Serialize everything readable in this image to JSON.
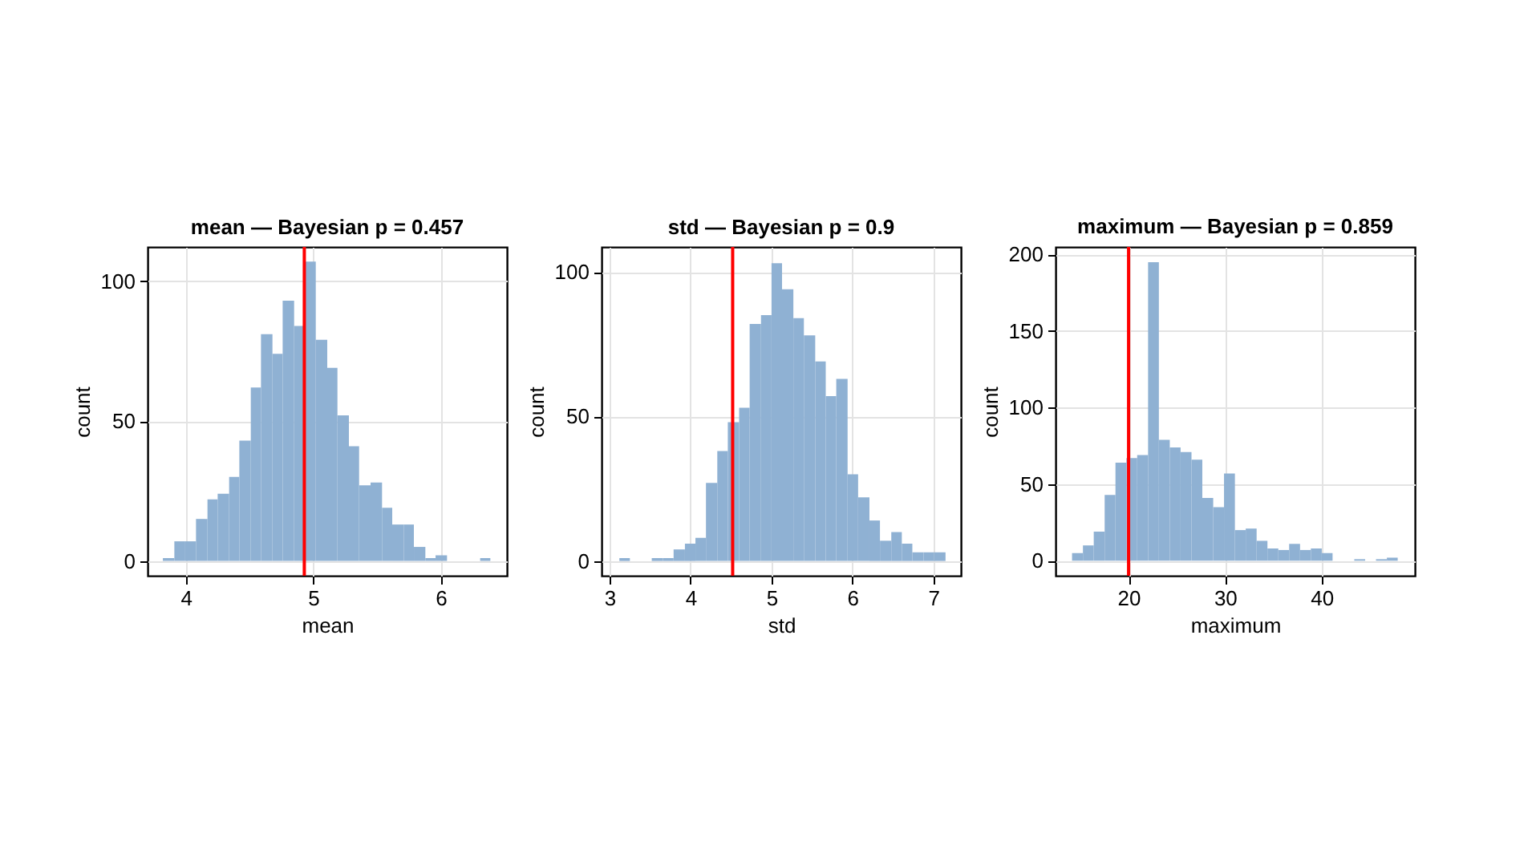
{
  "chart_data": [
    {
      "type": "histogram",
      "title": "mean — Bayesian p = 0.457",
      "xlabel": "mean",
      "ylabel": "count",
      "color": "#8fb1d3",
      "grid": true,
      "bins": [
        3.82,
        3.91,
        3.99,
        4.08,
        4.17,
        4.25,
        4.34,
        4.42,
        4.51,
        4.59,
        4.68,
        4.76,
        4.85,
        4.94,
        5.02,
        5.11,
        5.19,
        5.28,
        5.36,
        5.45,
        5.54,
        5.62,
        5.71,
        5.79,
        5.88,
        5.96,
        6.05,
        6.31,
        6.39
      ],
      "values": [
        1,
        7,
        7,
        15,
        22,
        24,
        30,
        43,
        62,
        81,
        74,
        93,
        84,
        107,
        79,
        69,
        52,
        41,
        27,
        28,
        19,
        13,
        13,
        5,
        1,
        2,
        0,
        1
      ],
      "xlim": [
        3.7,
        6.52
      ],
      "ylim": [
        -5.3,
        112.2
      ],
      "xticks": [
        4,
        5,
        6
      ],
      "yticks": [
        0,
        50,
        100
      ],
      "ref_lines": [
        {
          "axis": "x",
          "value": 4.93,
          "color": "#ff0000"
        }
      ]
    },
    {
      "type": "histogram",
      "title": "std — Bayesian p = 0.9",
      "xlabel": "std",
      "ylabel": "count",
      "color": "#8fb1d3",
      "grid": true,
      "bins": [
        3.12,
        3.25,
        3.52,
        3.66,
        3.79,
        3.93,
        4.06,
        4.19,
        4.33,
        4.46,
        4.6,
        4.73,
        4.87,
        5.0,
        5.13,
        5.27,
        5.4,
        5.54,
        5.67,
        5.8,
        5.94,
        6.07,
        6.21,
        6.34,
        6.48,
        6.61,
        6.74,
        6.88,
        7.01,
        7.15
      ],
      "values": [
        1,
        0,
        1,
        1,
        4,
        6,
        8,
        27,
        38,
        48,
        53,
        82,
        85,
        103,
        94,
        84,
        78,
        69,
        57,
        63,
        30,
        22,
        14,
        7,
        10,
        6,
        3,
        3,
        3
      ],
      "xlim": [
        2.9,
        7.34
      ],
      "ylim": [
        -5.1,
        108.6
      ],
      "xticks": [
        3,
        4,
        5,
        6,
        7
      ],
      "yticks": [
        0,
        50,
        100
      ],
      "ref_lines": [
        {
          "axis": "x",
          "value": 4.52,
          "color": "#ff0000"
        }
      ]
    },
    {
      "type": "histogram",
      "title": "maximum — Bayesian p = 0.859",
      "xlabel": "maximum",
      "ylabel": "count",
      "color": "#8fb1d3",
      "grid": true,
      "bins": [
        14.14,
        15.27,
        16.39,
        17.52,
        18.64,
        19.77,
        20.89,
        22.02,
        23.14,
        24.27,
        25.39,
        26.52,
        27.64,
        28.77,
        29.89,
        31.02,
        32.14,
        33.27,
        34.39,
        35.52,
        36.64,
        37.77,
        38.89,
        40.02,
        41.14,
        43.39,
        44.52,
        45.64,
        46.77,
        47.89
      ],
      "values": [
        5,
        10,
        19,
        43,
        64,
        67,
        69,
        195,
        79,
        74,
        71,
        66,
        41,
        35,
        57,
        20,
        21,
        13,
        8,
        7,
        11,
        7,
        8,
        5,
        0,
        1,
        0,
        1,
        2
      ],
      "xlim": [
        12.43,
        49.67
      ],
      "ylim": [
        -9.8,
        204.9
      ],
      "xticks": [
        20,
        30,
        40
      ],
      "yticks": [
        0,
        50,
        100,
        150,
        200
      ],
      "ref_lines": [
        {
          "axis": "x",
          "value": 20,
          "color": "#ff0000"
        }
      ]
    }
  ]
}
